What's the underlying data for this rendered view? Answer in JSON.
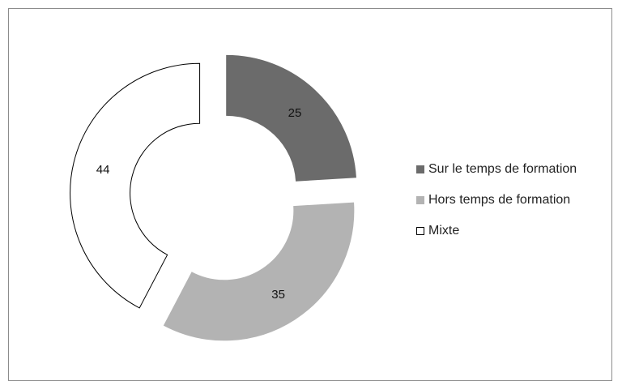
{
  "chart_data": {
    "type": "doughnut",
    "title": "",
    "series": [
      {
        "name": "Sur le temps de formation",
        "value": 25,
        "color": "#6b6b6b",
        "text_color": "#111111"
      },
      {
        "name": "Hors temps de formation",
        "value": 35,
        "color": "#b3b3b3",
        "text_color": "#111111"
      },
      {
        "name": "Mixte",
        "value": 44,
        "color": "#ffffff",
        "stroke": "#000000",
        "text_color": "#111111"
      }
    ],
    "legend": {
      "position": "right"
    },
    "exploded": true
  }
}
